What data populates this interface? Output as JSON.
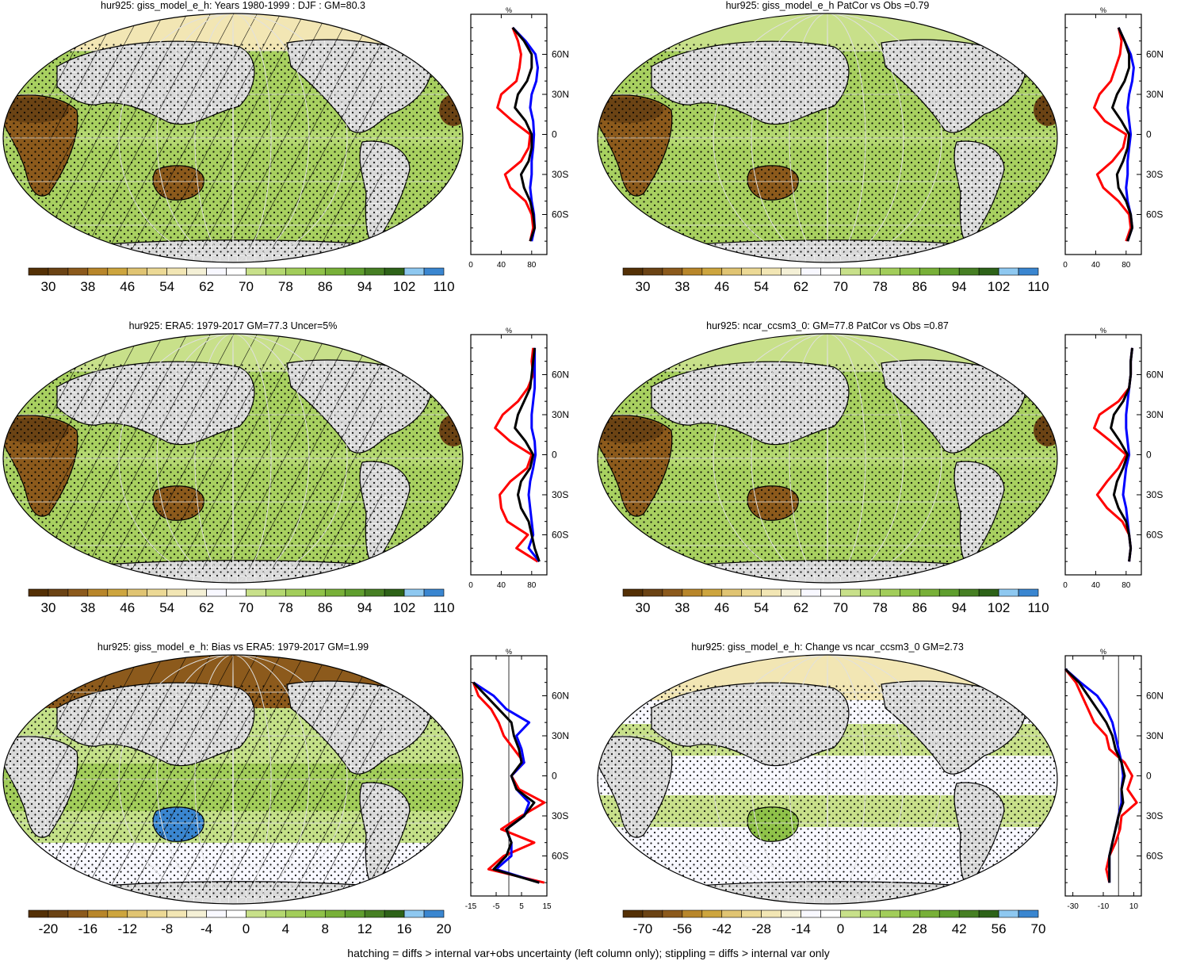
{
  "footer": "hatching = diffs > internal var+obs uncertainty (left column only); stippling = diffs > internal var only",
  "colors": {
    "line_red": "#ff0000",
    "line_blue": "#0000ff",
    "line_black": "#000000",
    "land_missing": "#d9d9d9",
    "palette_abs": [
      "#543005",
      "#6b4314",
      "#8c5a1c",
      "#b8862a",
      "#cda53e",
      "#e0c472",
      "#ecd995",
      "#f2e6b4",
      "#f4f0d6",
      "#f8f8ff",
      "#ffffff",
      "#c8e08a",
      "#b4d870",
      "#a2cd5a",
      "#8fc249",
      "#78b038",
      "#5f9e2e",
      "#467f23",
      "#2d6218",
      "#8ec8f0",
      "#3a86d0"
    ],
    "palette_bias": [
      "#543005",
      "#6b4314",
      "#8c5a1c",
      "#b8862a",
      "#cda53e",
      "#e0c472",
      "#ecd995",
      "#f2e6b4",
      "#f4f0d6",
      "#f8f8ff",
      "#ffffff",
      "#c8e08a",
      "#b4d870",
      "#a2cd5a",
      "#8fc249",
      "#78b038",
      "#5f9e2e",
      "#467f23",
      "#2d6218",
      "#8ec8f0",
      "#3a86d0"
    ]
  },
  "panels": [
    {
      "title": "hur925: giss_model_e_h: Years 1980-1999 : DJF : GM=80.3",
      "map_style": "abs",
      "hatched": true,
      "colorbar_labels": [
        "30",
        "38",
        "46",
        "54",
        "62",
        "70",
        "78",
        "86",
        "94",
        "102",
        "110"
      ],
      "profile": {
        "unit": "%",
        "xlim": [
          0,
          100
        ],
        "xticks": [
          "0",
          "40",
          "80"
        ],
        "zero_line": false,
        "lat_labels": [
          "60N",
          "30N",
          "0",
          "30S",
          "60S"
        ],
        "chart_data": {
          "type": "line",
          "lat": [
            80,
            70,
            60,
            50,
            40,
            30,
            20,
            10,
            0,
            -10,
            -20,
            -30,
            -40,
            -50,
            -60,
            -70,
            -80
          ],
          "series": [
            {
              "color": "red",
              "values": [
                55,
                62,
                66,
                64,
                60,
                40,
                35,
                55,
                78,
                76,
                66,
                45,
                52,
                72,
                80,
                82,
                78
              ]
            },
            {
              "color": "blue",
              "values": [
                55,
                72,
                85,
                88,
                86,
                80,
                78,
                82,
                83,
                82,
                80,
                80,
                78,
                80,
                83,
                84,
                80
              ]
            },
            {
              "color": "black",
              "values": [
                55,
                70,
                80,
                80,
                74,
                62,
                58,
                72,
                80,
                80,
                76,
                66,
                70,
                78,
                82,
                84,
                78
              ]
            }
          ]
        }
      }
    },
    {
      "title": "hur925: giss_model_e_h PatCor vs Obs =0.79",
      "map_style": "abs",
      "hatched": false,
      "colorbar_labels": [
        "30",
        "38",
        "46",
        "54",
        "62",
        "70",
        "78",
        "86",
        "94",
        "102",
        "110"
      ],
      "profile": {
        "unit": "%",
        "xlim": [
          0,
          100
        ],
        "xticks": [
          "0",
          "40",
          "80"
        ],
        "zero_line": false,
        "lat_labels": [
          "60N",
          "30N",
          "0",
          "30S",
          "60S"
        ],
        "chart_data": {
          "type": "line",
          "lat": [
            80,
            70,
            60,
            50,
            40,
            30,
            20,
            10,
            0,
            -10,
            -20,
            -30,
            -40,
            -50,
            -60,
            -70,
            -80
          ],
          "series": [
            {
              "color": "red",
              "values": [
                70,
                74,
                72,
                66,
                60,
                45,
                38,
                52,
                80,
                76,
                62,
                42,
                50,
                70,
                84,
                86,
                80
              ]
            },
            {
              "color": "blue",
              "values": [
                70,
                78,
                86,
                90,
                88,
                84,
                82,
                84,
                86,
                84,
                82,
                82,
                80,
                82,
                86,
                88,
                82
              ]
            },
            {
              "color": "black",
              "values": [
                70,
                78,
                84,
                84,
                78,
                68,
                62,
                74,
                84,
                82,
                76,
                68,
                70,
                80,
                86,
                88,
                82
              ]
            }
          ]
        }
      }
    },
    {
      "title": "hur925: ERA5: 1979-2017 GM=77.3 Uncer=5%",
      "map_style": "abs",
      "hatched": true,
      "colorbar_labels": [
        "30",
        "38",
        "46",
        "54",
        "62",
        "70",
        "78",
        "86",
        "94",
        "102",
        "110"
      ],
      "profile": {
        "unit": "%",
        "xlim": [
          0,
          100
        ],
        "xticks": [
          "0",
          "40",
          "80"
        ],
        "zero_line": false,
        "lat_labels": [
          "60N",
          "30N",
          "0",
          "30S",
          "60S"
        ],
        "chart_data": {
          "type": "line",
          "lat": [
            80,
            70,
            60,
            50,
            40,
            30,
            20,
            10,
            0,
            -10,
            -20,
            -30,
            -40,
            -50,
            -60,
            -70,
            -80
          ],
          "series": [
            {
              "color": "red",
              "values": [
                82,
                80,
                82,
                75,
                62,
                42,
                32,
                52,
                80,
                74,
                52,
                38,
                40,
                48,
                75,
                60,
                88
              ]
            },
            {
              "color": "blue",
              "values": [
                84,
                84,
                84,
                84,
                82,
                80,
                80,
                84,
                85,
                82,
                78,
                76,
                78,
                80,
                82,
                76,
                90
              ]
            },
            {
              "color": "black",
              "values": [
                84,
                82,
                80,
                78,
                70,
                62,
                58,
                72,
                82,
                78,
                66,
                62,
                66,
                76,
                80,
                84,
                90
              ]
            }
          ]
        }
      }
    },
    {
      "title": "hur925: ncar_ccsm3_0: GM=77.8 PatCor vs Obs =0.87",
      "map_style": "abs",
      "hatched": false,
      "colorbar_labels": [
        "30",
        "38",
        "46",
        "54",
        "62",
        "70",
        "78",
        "86",
        "94",
        "102",
        "110"
      ],
      "profile": {
        "unit": "%",
        "xlim": [
          0,
          100
        ],
        "xticks": [
          "0",
          "40",
          "80"
        ],
        "zero_line": false,
        "lat_labels": [
          "60N",
          "30N",
          "0",
          "30S",
          "60S"
        ],
        "chart_data": {
          "type": "line",
          "lat": [
            80,
            70,
            60,
            50,
            40,
            30,
            20,
            10,
            0,
            -10,
            -20,
            -30,
            -40,
            -50,
            -60,
            -70,
            -80
          ],
          "series": [
            {
              "color": "red",
              "values": [
                88,
                86,
                86,
                84,
                70,
                45,
                38,
                60,
                80,
                70,
                55,
                42,
                55,
                75,
                84,
                86,
                84
              ]
            },
            {
              "color": "blue",
              "values": [
                88,
                86,
                86,
                84,
                82,
                80,
                80,
                82,
                84,
                80,
                78,
                76,
                80,
                82,
                84,
                86,
                84
              ]
            },
            {
              "color": "black",
              "values": [
                88,
                86,
                86,
                84,
                76,
                64,
                60,
                72,
                82,
                76,
                68,
                64,
                70,
                80,
                84,
                86,
                84
              ]
            }
          ]
        }
      }
    },
    {
      "title": "hur925: giss_model_e_h: Bias vs ERA5: 1979-2017 GM=1.99",
      "map_style": "bias",
      "hatched": true,
      "colorbar_labels": [
        "-20",
        "-16",
        "-12",
        "-8",
        "-4",
        "0",
        "4",
        "8",
        "12",
        "16",
        "20"
      ],
      "profile": {
        "unit": "%",
        "xlim": [
          -15,
          15
        ],
        "xticks": [
          "-15",
          "-5",
          "5",
          "15"
        ],
        "zero_line": true,
        "lat_labels": [
          "60N",
          "30N",
          "0",
          "30S",
          "60S"
        ],
        "chart_data": {
          "type": "line",
          "lat": [
            70,
            60,
            50,
            40,
            30,
            20,
            10,
            0,
            -10,
            -20,
            -30,
            -40,
            -50,
            -60,
            -70,
            -80
          ],
          "series": [
            {
              "color": "red",
              "values": [
                -14,
                -12,
                -7,
                -4,
                -2,
                2,
                6,
                1,
                4,
                14,
                5,
                -3,
                10,
                -2,
                -8,
                14
              ]
            },
            {
              "color": "blue",
              "values": [
                -14,
                -6,
                -1,
                8,
                3,
                5,
                6,
                1,
                3,
                8,
                6,
                -1,
                1,
                1,
                -5,
                12
              ]
            },
            {
              "color": "black",
              "values": [
                -14,
                -9,
                -4,
                1,
                2,
                4,
                5,
                1,
                3,
                10,
                6,
                -1,
                1,
                -1,
                -6,
                12
              ]
            }
          ]
        }
      }
    },
    {
      "title": "hur925: giss_model_e_h: Change vs ncar_ccsm3_0 GM=2.73",
      "map_style": "change",
      "hatched": false,
      "colorbar_labels": [
        "-70",
        "-56",
        "-42",
        "-28",
        "-14",
        "0",
        "14",
        "28",
        "42",
        "56",
        "70"
      ],
      "profile": {
        "unit": "%",
        "xlim": [
          -35,
          15
        ],
        "xticks": [
          "-30",
          "-10",
          "10"
        ],
        "zero_line": true,
        "lat_labels": [
          "60N",
          "30N",
          "0",
          "30S",
          "60S"
        ],
        "chart_data": {
          "type": "line",
          "lat": [
            80,
            70,
            60,
            50,
            40,
            30,
            20,
            10,
            0,
            -10,
            -20,
            -30,
            -40,
            -50,
            -60,
            -70,
            -80
          ],
          "series": [
            {
              "color": "red",
              "values": [
                -35,
                -28,
                -24,
                -20,
                -16,
                -8,
                -6,
                4,
                9,
                6,
                12,
                2,
                1,
                -2,
                -6,
                -8,
                -6
              ]
            },
            {
              "color": "blue",
              "values": [
                -35,
                -25,
                -14,
                -8,
                -4,
                -2,
                0,
                2,
                3,
                2,
                2,
                0,
                -2,
                -4,
                -6,
                -6,
                -6
              ]
            },
            {
              "color": "black",
              "values": [
                -35,
                -26,
                -20,
                -14,
                -8,
                -4,
                -2,
                2,
                4,
                2,
                3,
                0,
                -2,
                -4,
                -6,
                -6,
                -6
              ]
            }
          ]
        }
      }
    }
  ]
}
